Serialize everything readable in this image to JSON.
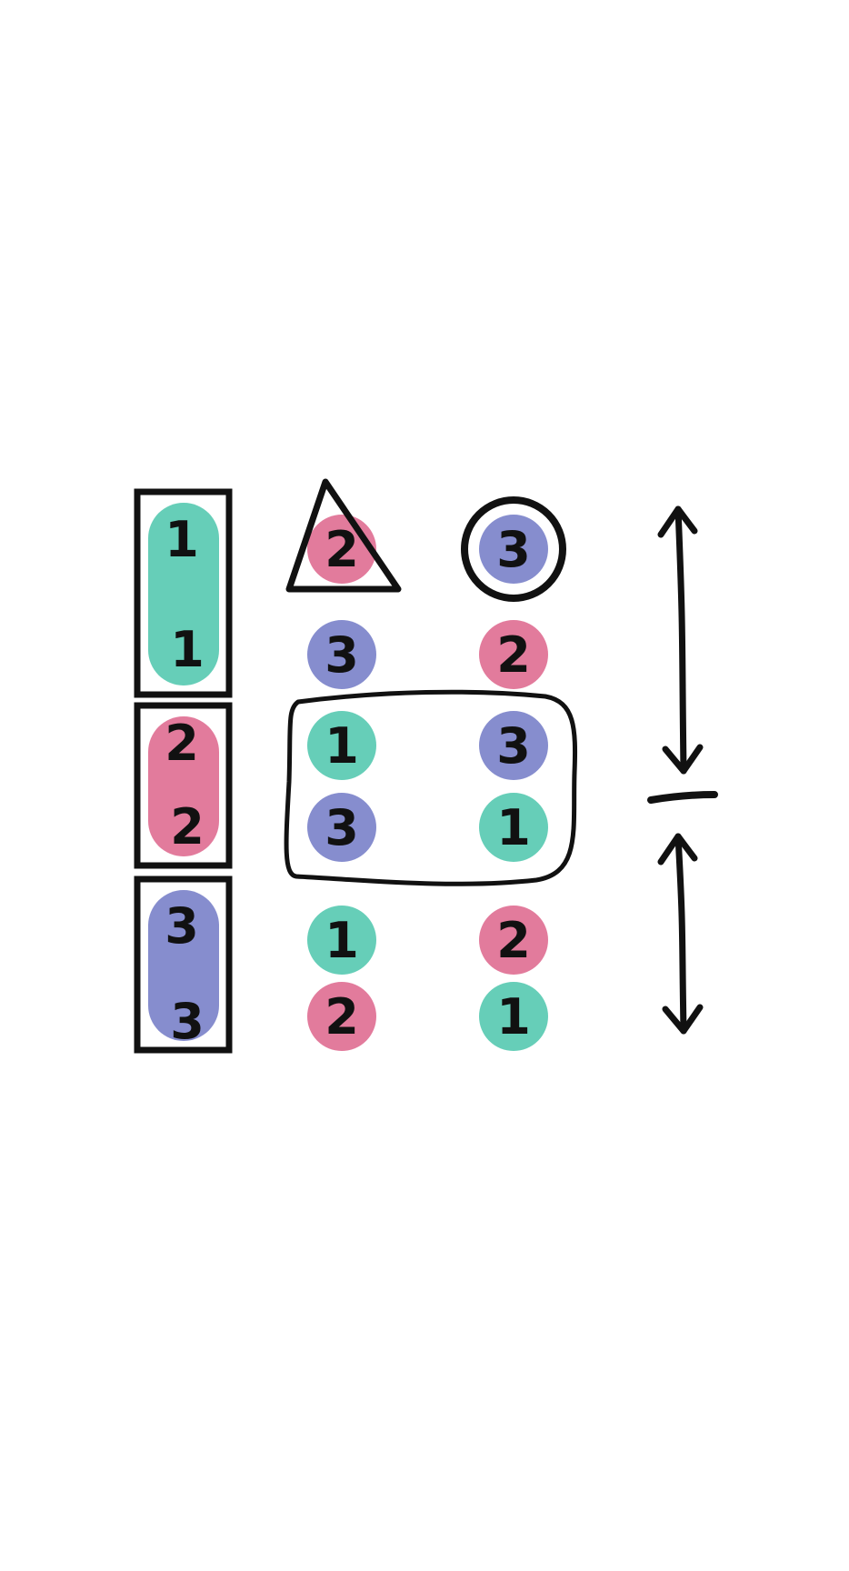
{
  "colors": {
    "teal": "#5ecbb4",
    "pink": "#e07497",
    "purple": "#8087cb",
    "ink": "#111111",
    "background": "#ffffff"
  },
  "left_column": {
    "groups": [
      {
        "color": "teal",
        "numbers": [
          "1",
          "1"
        ]
      },
      {
        "color": "pink",
        "numbers": [
          "2",
          "2"
        ]
      },
      {
        "color": "purple",
        "numbers": [
          "3",
          "3"
        ]
      }
    ]
  },
  "grid": {
    "rows": [
      {
        "left": {
          "number": "2",
          "color": "pink",
          "marker": "triangle"
        },
        "right": {
          "number": "3",
          "color": "purple",
          "marker": "circle"
        }
      },
      {
        "left": {
          "number": "3",
          "color": "purple",
          "marker": "none"
        },
        "right": {
          "number": "2",
          "color": "pink",
          "marker": "none"
        }
      },
      {
        "left": {
          "number": "1",
          "color": "teal",
          "marker": "none"
        },
        "right": {
          "number": "3",
          "color": "purple",
          "marker": "none"
        }
      },
      {
        "left": {
          "number": "3",
          "color": "purple",
          "marker": "none"
        },
        "right": {
          "number": "1",
          "color": "teal",
          "marker": "none"
        }
      },
      {
        "left": {
          "number": "1",
          "color": "teal",
          "marker": "none"
        },
        "right": {
          "number": "2",
          "color": "pink",
          "marker": "none"
        }
      },
      {
        "left": {
          "number": "2",
          "color": "pink",
          "marker": "none"
        },
        "right": {
          "number": "1",
          "color": "teal",
          "marker": "none"
        }
      }
    ],
    "highlighted_rows": [
      2,
      3
    ]
  },
  "annotations": {
    "fraction_numerator_arrow": "double-headed",
    "fraction_denominator_arrow": "double-headed",
    "fraction_bar": true
  }
}
